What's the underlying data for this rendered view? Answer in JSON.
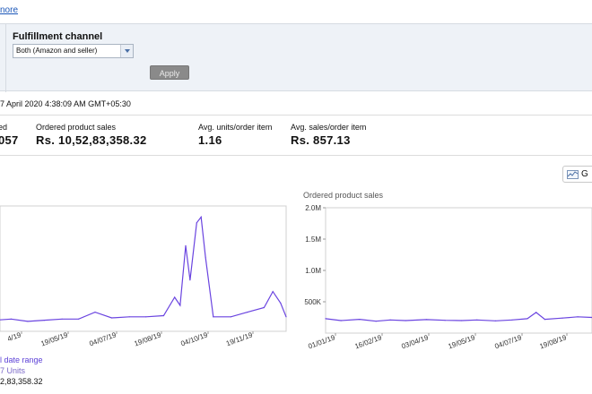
{
  "top_link": {
    "label": "nore"
  },
  "filter": {
    "label": "Fulfillment channel",
    "selected": "Both (Amazon and seller)",
    "apply_label": "Apply"
  },
  "timestamp": "7 April 2020 4:38:09 AM GMT+05:30",
  "stats": [
    {
      "label": "ed",
      "value": "057"
    },
    {
      "label": "Ordered product sales",
      "value": "Rs. 10,52,83,358.32"
    },
    {
      "label": "Avg. units/order item",
      "value": "1.16"
    },
    {
      "label": "Avg. sales/order item",
      "value": "Rs. 857.13"
    }
  ],
  "graph_button": {
    "label": "G"
  },
  "legend": {
    "line1": "l date range",
    "line2": "7 Units",
    "line3": "2,83,358.32"
  },
  "colors": {
    "series": "#6a44e0",
    "accent": "#1a56b8",
    "filter_bg": "#eef2f7"
  },
  "icons": {
    "graph": "line-chart-icon",
    "dropdown": "chevron-down-icon"
  },
  "chart_data": [
    {
      "type": "line",
      "title": "",
      "x_tick_labels": [
        "4/19",
        "19/05/19",
        "04/07/19",
        "19/08/19",
        "04/10/19",
        "19/11/19"
      ],
      "x": [
        "2019-04-04",
        "2019-04-19",
        "2019-05-04",
        "2019-05-19",
        "2019-06-04",
        "2019-06-19",
        "2019-07-04",
        "2019-07-19",
        "2019-08-04",
        "2019-08-19",
        "2019-09-04",
        "2019-09-14",
        "2019-09-19",
        "2019-09-24",
        "2019-09-28",
        "2019-10-04",
        "2019-10-08",
        "2019-10-12",
        "2019-10-19",
        "2019-11-04",
        "2019-11-19",
        "2019-12-04",
        "2019-12-12",
        "2019-12-19",
        "2019-12-24"
      ],
      "series": [
        {
          "values": [
            5,
            6,
            4,
            5,
            6,
            6,
            12,
            7,
            8,
            8,
            9,
            25,
            18,
            70,
            40,
            90,
            95,
            60,
            8,
            8,
            12,
            16,
            30,
            20,
            8
          ]
        }
      ],
      "grid": false
    },
    {
      "type": "line",
      "title": "Ordered product sales",
      "ylabel": "",
      "y_tick_labels": [
        "2.0M",
        "1.5M",
        "1.0M",
        "500K"
      ],
      "ylim": [
        0,
        2000000
      ],
      "x_tick_labels": [
        "01/01/19",
        "16/02/19",
        "03/04/19",
        "19/05/19",
        "04/07/19",
        "19/08/19"
      ],
      "x": [
        "2019-01-01",
        "2019-01-15",
        "2019-02-01",
        "2019-02-16",
        "2019-03-01",
        "2019-03-15",
        "2019-04-03",
        "2019-04-20",
        "2019-05-05",
        "2019-05-19",
        "2019-06-05",
        "2019-06-20",
        "2019-07-04",
        "2019-07-12",
        "2019-07-20",
        "2019-08-05",
        "2019-08-19",
        "2019-09-01"
      ],
      "series": [
        {
          "values": [
            230000,
            200000,
            220000,
            190000,
            210000,
            200000,
            215000,
            205000,
            200000,
            210000,
            195000,
            210000,
            230000,
            330000,
            220000,
            240000,
            260000,
            250000
          ]
        }
      ],
      "grid": false
    }
  ]
}
